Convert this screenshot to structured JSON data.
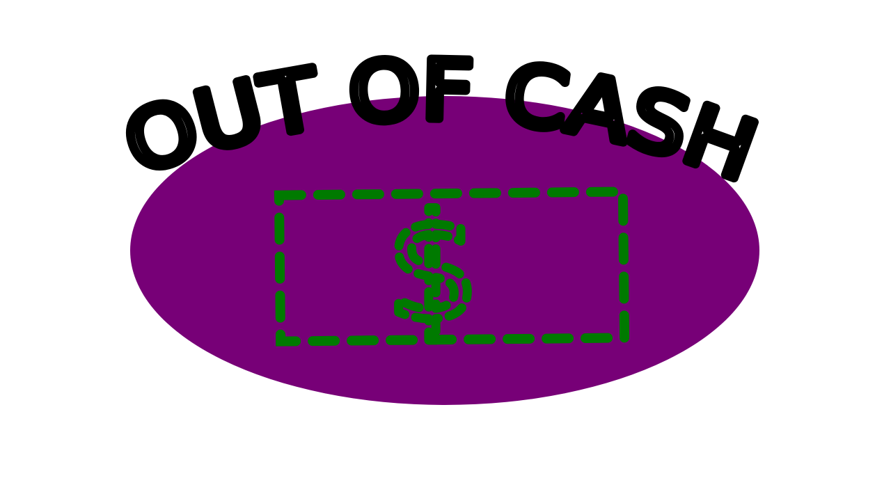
{
  "title": "OUT OF CASH",
  "icon": "$"
}
